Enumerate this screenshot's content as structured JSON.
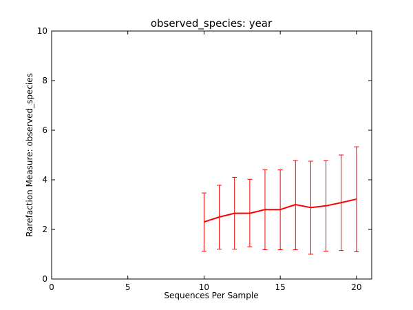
{
  "chart_data": {
    "type": "line",
    "title": "observed_species: year",
    "xlabel": "Sequences Per Sample",
    "ylabel": "Rarefaction Measure: observed_species",
    "xlim": [
      0,
      21
    ],
    "ylim": [
      0,
      10
    ],
    "x_ticks": [
      0,
      5,
      10,
      15,
      20
    ],
    "y_ticks": [
      0,
      2,
      4,
      6,
      8,
      10
    ],
    "grid": false,
    "legend": "none",
    "series": [
      {
        "color": "#ff0000",
        "x": [
          10,
          11,
          12,
          13,
          14,
          15,
          16,
          17,
          18,
          19,
          20
        ],
        "y": [
          2.3,
          2.5,
          2.65,
          2.65,
          2.8,
          2.8,
          3.0,
          2.88,
          2.95,
          3.08,
          3.22
        ],
        "error_low": [
          1.12,
          1.2,
          1.2,
          1.3,
          1.18,
          1.18,
          1.18,
          1.0,
          1.12,
          1.15,
          1.1
        ],
        "error_high": [
          3.47,
          3.78,
          4.1,
          4.02,
          4.4,
          4.4,
          4.78,
          4.75,
          4.78,
          5.0,
          5.33
        ]
      }
    ]
  }
}
